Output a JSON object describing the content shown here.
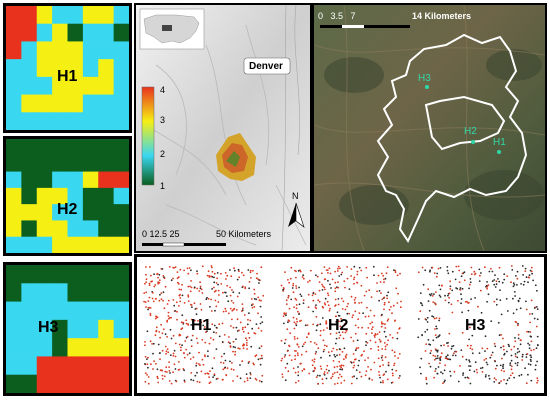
{
  "colors": {
    "class1": "#0b5e1e",
    "class2": "#3ad7f0",
    "class3": "#f5ef14",
    "class4": "#e8321e",
    "dot_red": "#d93a22",
    "dot_black": "#2a2a2a",
    "perimeter": "#ffffff",
    "site_marker": "#2fd8a8"
  },
  "habitat_grids": [
    {
      "label": "H1",
      "cells": [
        [
          4,
          4,
          3,
          2,
          2,
          3,
          3,
          2
        ],
        [
          4,
          4,
          2,
          3,
          1,
          2,
          2,
          1
        ],
        [
          4,
          2,
          3,
          3,
          3,
          2,
          2,
          2
        ],
        [
          2,
          2,
          3,
          3,
          3,
          2,
          3,
          2
        ],
        [
          2,
          2,
          2,
          3,
          3,
          3,
          3,
          2
        ],
        [
          2,
          3,
          3,
          3,
          3,
          2,
          2,
          2
        ],
        [
          2,
          2,
          2,
          2,
          2,
          2,
          2,
          2
        ]
      ]
    },
    {
      "label": "H2",
      "cells": [
        [
          1,
          1,
          1,
          1,
          1,
          1,
          1,
          1
        ],
        [
          1,
          1,
          1,
          1,
          1,
          1,
          1,
          1
        ],
        [
          2,
          1,
          1,
          2,
          2,
          3,
          4,
          4
        ],
        [
          3,
          1,
          3,
          3,
          2,
          1,
          1,
          2
        ],
        [
          3,
          3,
          3,
          2,
          2,
          1,
          1,
          1
        ],
        [
          3,
          1,
          3,
          3,
          2,
          2,
          1,
          1
        ],
        [
          2,
          2,
          2,
          3,
          3,
          3,
          3,
          3
        ]
      ]
    },
    {
      "label": "H3",
      "cells": [
        [
          1,
          1,
          1,
          1,
          1,
          1,
          1,
          1
        ],
        [
          1,
          2,
          2,
          2,
          1,
          1,
          1,
          1
        ],
        [
          2,
          2,
          2,
          2,
          2,
          2,
          2,
          2
        ],
        [
          2,
          2,
          2,
          1,
          2,
          2,
          3,
          2
        ],
        [
          2,
          2,
          2,
          1,
          3,
          3,
          3,
          3
        ],
        [
          2,
          2,
          4,
          4,
          4,
          4,
          4,
          4
        ],
        [
          1,
          1,
          4,
          4,
          4,
          4,
          4,
          4
        ]
      ]
    }
  ],
  "locator_map": {
    "city_label": "Denver",
    "legend_ticks": [
      "4",
      "3",
      "2",
      "1"
    ],
    "scale_label": "0 12.5 25",
    "scale_units": "50 Kilometers",
    "north_label": "N"
  },
  "satellite_map": {
    "scale_label": "0   3.5   7",
    "scale_units": "14 Kilometers",
    "sites": [
      "H3",
      "H2",
      "H1"
    ]
  },
  "point_panels": [
    {
      "label": "H1",
      "red_fraction": 0.75
    },
    {
      "label": "H2",
      "red_fraction": 0.8
    },
    {
      "label": "H3",
      "red_fraction": 0.4
    }
  ]
}
